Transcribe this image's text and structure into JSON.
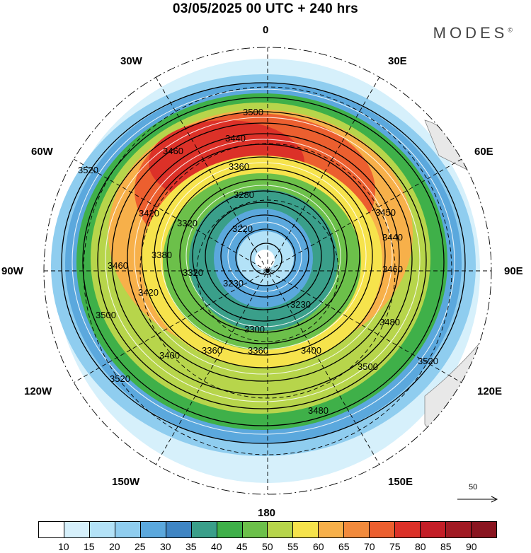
{
  "title": "03/05/2025  00 UTC  + 240 hrs",
  "brand": "MODES",
  "brand_mark": "©",
  "longitude_labels": {
    "n": "0",
    "nne": "30E",
    "ne": "60E",
    "e": "90E",
    "se": "120E",
    "sse": "150E",
    "s": "180",
    "ssw": "150W",
    "sw": "120W",
    "w": "90W",
    "nw": "60W",
    "nnw": "30W"
  },
  "contour_labels": [
    "3500",
    "3440",
    "3460",
    "3360",
    "3280",
    "3220",
    "3320",
    "3380",
    "3420",
    "3520",
    "3450",
    "3460",
    "3480",
    "3500",
    "3520",
    "3400",
    "3360",
    "3300",
    "3230",
    "3320",
    "3360",
    "3420",
    "3440",
    "3460",
    "3480",
    "3500",
    "3520",
    "3230",
    "3400"
  ],
  "reference_vector": "50",
  "colorbar": {
    "colors": [
      "#ffffff",
      "#d6f0fb",
      "#b3e2f7",
      "#8fcdef",
      "#5ba8dd",
      "#3f85c4",
      "#3a9f8a",
      "#3fb049",
      "#6cc04a",
      "#b7d54b",
      "#f6e34c",
      "#f7b04a",
      "#f28a3c",
      "#ec5f2f",
      "#dc3128",
      "#c41e27",
      "#a11a23",
      "#8a1520"
    ],
    "labels": [
      "10",
      "15",
      "20",
      "25",
      "30",
      "35",
      "40",
      "45",
      "50",
      "55",
      "60",
      "65",
      "70",
      "75",
      "80",
      "85",
      "90"
    ]
  }
}
